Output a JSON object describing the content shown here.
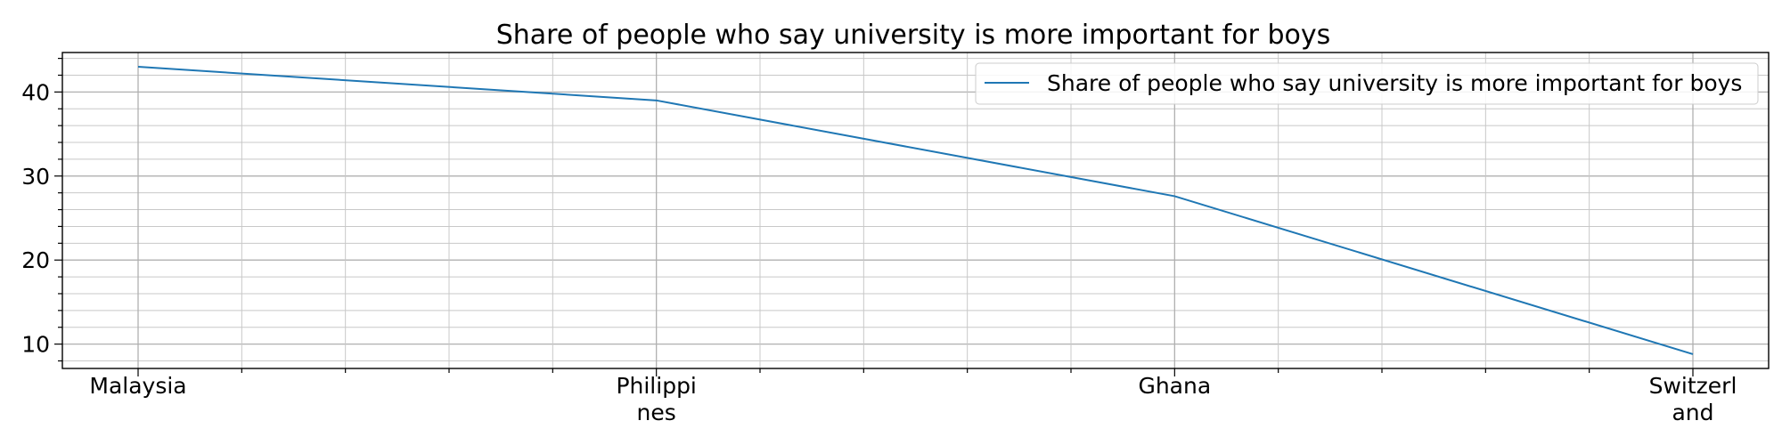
{
  "chart_data": {
    "type": "line",
    "title": "Share of people who say university is more important for boys",
    "xlabel": "",
    "ylabel": "",
    "categories": [
      [
        "Malaysia"
      ],
      [
        "Philippi",
        "nes"
      ],
      [
        "Ghana"
      ],
      [
        "Switzerl",
        "and"
      ]
    ],
    "series": [
      {
        "name": "Share of people who say university is more important for boys",
        "values": [
          43.0,
          39.0,
          27.6,
          8.8
        ],
        "color": "#1f77b4"
      }
    ],
    "ylim": [
      7.1,
      44.7
    ],
    "yticks": [
      10,
      20,
      30,
      40
    ],
    "grid": true,
    "legend": "top-right"
  }
}
